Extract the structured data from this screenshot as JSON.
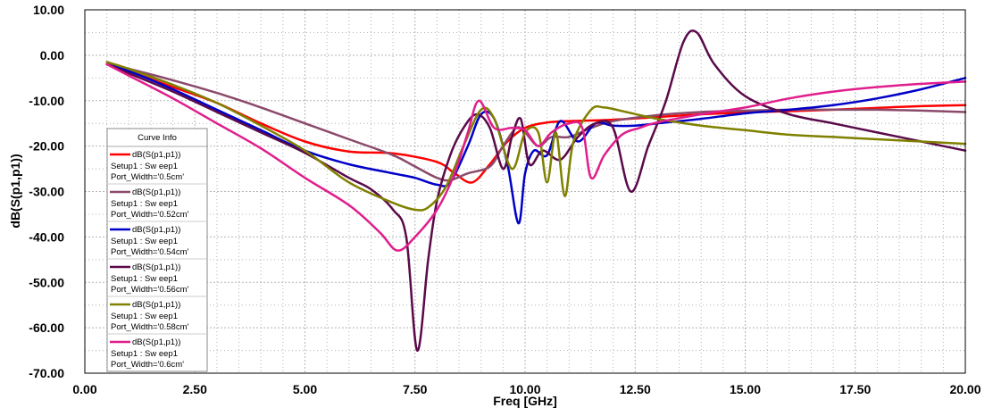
{
  "chart_data": {
    "type": "line",
    "xlabel": "Freq [GHz]",
    "ylabel": "dB(S(p1,p1))",
    "xlim": [
      0,
      20
    ],
    "ylim": [
      -70,
      10
    ],
    "grid": true,
    "x_ticks": [
      "0.00",
      "2.50",
      "5.00",
      "7.50",
      "10.00",
      "12.50",
      "15.00",
      "17.50",
      "20.00"
    ],
    "y_ticks": [
      "10.00",
      "0.00",
      "-10.00",
      "-20.00",
      "-30.00",
      "-40.00",
      "-50.00",
      "-60.00",
      "-70.00"
    ],
    "legend": {
      "title": "Curve Info",
      "position": "left"
    },
    "series": [
      {
        "name": "dB(S(p1,p1))",
        "setup": "Setup1 : Sw eep1",
        "param": "Port_Width='0.5cm'",
        "color": "#ff0000",
        "points": [
          [
            0.5,
            -2
          ],
          [
            1,
            -3.5
          ],
          [
            2,
            -7
          ],
          [
            3,
            -10.5
          ],
          [
            4,
            -15
          ],
          [
            5,
            -19
          ],
          [
            6,
            -21.2
          ],
          [
            7,
            -21.6
          ],
          [
            8,
            -23.5
          ],
          [
            8.4,
            -26
          ],
          [
            8.8,
            -28
          ],
          [
            9.2,
            -24
          ],
          [
            9.6,
            -19
          ],
          [
            10,
            -16
          ],
          [
            10.5,
            -14.8
          ],
          [
            11,
            -14.5
          ],
          [
            12,
            -14.2
          ],
          [
            13,
            -13.6
          ],
          [
            14,
            -13
          ],
          [
            15,
            -12.6
          ],
          [
            16,
            -12.3
          ],
          [
            17,
            -12
          ],
          [
            18,
            -11.6
          ],
          [
            19,
            -11.2
          ],
          [
            20,
            -11
          ]
        ]
      },
      {
        "name": "dB(S(p1,p1))",
        "setup": "Setup1 : Sw eep1",
        "param": "Port_Width='0.52cm'",
        "color": "#8b4a6b",
        "points": [
          [
            0.5,
            -2
          ],
          [
            1,
            -3
          ],
          [
            2,
            -5.5
          ],
          [
            3,
            -8.3
          ],
          [
            4,
            -11.5
          ],
          [
            5,
            -15
          ],
          [
            6,
            -18.5
          ],
          [
            7,
            -22
          ],
          [
            7.5,
            -24.5
          ],
          [
            8,
            -27
          ],
          [
            8.3,
            -27.5
          ],
          [
            8.7,
            -26
          ],
          [
            9.2,
            -24.5
          ],
          [
            9.5,
            -20
          ],
          [
            9.8,
            -16
          ],
          [
            10,
            -17
          ],
          [
            10.3,
            -20
          ],
          [
            10.6,
            -18
          ],
          [
            11,
            -18
          ],
          [
            11.5,
            -16
          ],
          [
            12,
            -14.5
          ],
          [
            13,
            -13.2
          ],
          [
            14,
            -12.5
          ],
          [
            15,
            -12.2
          ],
          [
            16,
            -12
          ],
          [
            17,
            -12
          ],
          [
            18,
            -12
          ],
          [
            19,
            -12.2
          ],
          [
            20,
            -12.5
          ]
        ]
      },
      {
        "name": "dB(S(p1,p1))",
        "setup": "Setup1 : Sw eep1",
        "param": "Port_Width='0.54cm'",
        "color": "#0000c8",
        "points": [
          [
            0.5,
            -2
          ],
          [
            1,
            -3.5
          ],
          [
            2,
            -7.5
          ],
          [
            3,
            -12
          ],
          [
            4,
            -16.5
          ],
          [
            5,
            -21
          ],
          [
            6,
            -24
          ],
          [
            7,
            -26
          ],
          [
            7.5,
            -27
          ],
          [
            8,
            -28.5
          ],
          [
            8.3,
            -28
          ],
          [
            8.7,
            -20
          ],
          [
            9,
            -13
          ],
          [
            9.3,
            -14
          ],
          [
            9.6,
            -24
          ],
          [
            9.85,
            -37
          ],
          [
            10,
            -26
          ],
          [
            10.2,
            -21
          ],
          [
            10.5,
            -22
          ],
          [
            10.8,
            -14.5
          ],
          [
            11.2,
            -19
          ],
          [
            11.6,
            -15
          ],
          [
            12,
            -15.5
          ],
          [
            12.5,
            -15.5
          ],
          [
            13,
            -15
          ],
          [
            14,
            -14
          ],
          [
            15,
            -12.8
          ],
          [
            16,
            -12
          ],
          [
            17,
            -11
          ],
          [
            18,
            -9.5
          ],
          [
            19,
            -7.5
          ],
          [
            20,
            -5
          ]
        ]
      },
      {
        "name": "dB(S(p1,p1))",
        "setup": "Setup1 : Sw eep1",
        "param": "Port_Width='0.56cm'",
        "color": "#5a0a4a",
        "points": [
          [
            0.5,
            -2
          ],
          [
            1,
            -4
          ],
          [
            2,
            -8
          ],
          [
            3,
            -12.5
          ],
          [
            4,
            -17
          ],
          [
            5,
            -21.5
          ],
          [
            6,
            -27
          ],
          [
            6.5,
            -29.5
          ],
          [
            7,
            -34
          ],
          [
            7.3,
            -40
          ],
          [
            7.55,
            -65
          ],
          [
            7.8,
            -45
          ],
          [
            8,
            -32
          ],
          [
            8.3,
            -22
          ],
          [
            8.6,
            -16
          ],
          [
            8.9,
            -13
          ],
          [
            9.2,
            -16
          ],
          [
            9.5,
            -25
          ],
          [
            9.7,
            -18
          ],
          [
            9.9,
            -14
          ],
          [
            10.1,
            -24
          ],
          [
            10.4,
            -21
          ],
          [
            10.8,
            -23
          ],
          [
            11.2,
            -18
          ],
          [
            11.6,
            -15
          ],
          [
            12,
            -16
          ],
          [
            12.4,
            -30
          ],
          [
            12.8,
            -20
          ],
          [
            13.2,
            -10
          ],
          [
            13.6,
            3
          ],
          [
            13.9,
            5
          ],
          [
            14.3,
            -2
          ],
          [
            15,
            -9
          ],
          [
            16,
            -13
          ],
          [
            17,
            -15
          ],
          [
            18,
            -17
          ],
          [
            19,
            -19
          ],
          [
            20,
            -21
          ]
        ]
      },
      {
        "name": "dB(S(p1,p1))",
        "setup": "Setup1 : Sw eep1",
        "param": "Port_Width='0.58cm'",
        "color": "#808000",
        "points": [
          [
            0.5,
            -1.5
          ],
          [
            1,
            -3
          ],
          [
            2,
            -6.5
          ],
          [
            3,
            -10.5
          ],
          [
            4,
            -15.5
          ],
          [
            5,
            -21
          ],
          [
            6,
            -28
          ],
          [
            7,
            -32.5
          ],
          [
            7.5,
            -34
          ],
          [
            7.8,
            -33.5
          ],
          [
            8.2,
            -29
          ],
          [
            8.6,
            -20
          ],
          [
            9,
            -12
          ],
          [
            9.3,
            -14
          ],
          [
            9.7,
            -25
          ],
          [
            10,
            -17
          ],
          [
            10.3,
            -17
          ],
          [
            10.5,
            -28
          ],
          [
            10.7,
            -17
          ],
          [
            10.9,
            -31
          ],
          [
            11.1,
            -19
          ],
          [
            11.5,
            -12
          ],
          [
            11.8,
            -11.5
          ],
          [
            12.3,
            -12.5
          ],
          [
            13,
            -14
          ],
          [
            14,
            -15.5
          ],
          [
            15,
            -16.5
          ],
          [
            16,
            -17.5
          ],
          [
            17,
            -18
          ],
          [
            18,
            -18.5
          ],
          [
            19,
            -19
          ],
          [
            20,
            -19.5
          ]
        ]
      },
      {
        "name": "dB(S(p1,p1))",
        "setup": "Setup1 : Sw eep1",
        "param": "Port_Width='0.6cm'",
        "color": "#e01e8c",
        "points": [
          [
            0.5,
            -2
          ],
          [
            1,
            -4.5
          ],
          [
            2,
            -9.5
          ],
          [
            3,
            -15
          ],
          [
            4,
            -20.5
          ],
          [
            5,
            -27
          ],
          [
            6,
            -33
          ],
          [
            6.7,
            -39
          ],
          [
            7.1,
            -43
          ],
          [
            7.5,
            -40
          ],
          [
            8,
            -34
          ],
          [
            8.4,
            -26
          ],
          [
            8.7,
            -17
          ],
          [
            8.95,
            -10
          ],
          [
            9.3,
            -16
          ],
          [
            9.7,
            -16
          ],
          [
            10,
            -16.5
          ],
          [
            10.3,
            -20
          ],
          [
            10.6,
            -17
          ],
          [
            11,
            -15
          ],
          [
            11.3,
            -16
          ],
          [
            11.5,
            -27
          ],
          [
            11.8,
            -22
          ],
          [
            12.2,
            -17.5
          ],
          [
            12.6,
            -16
          ],
          [
            13,
            -14.8
          ],
          [
            14,
            -13
          ],
          [
            15,
            -11.5
          ],
          [
            16,
            -9.5
          ],
          [
            17,
            -8
          ],
          [
            18,
            -7
          ],
          [
            19,
            -6.3
          ],
          [
            20,
            -5.8
          ]
        ]
      }
    ]
  }
}
